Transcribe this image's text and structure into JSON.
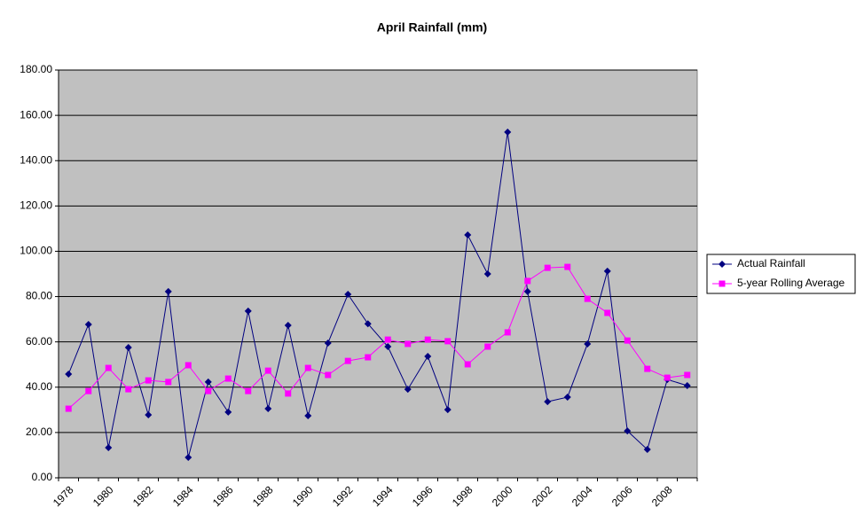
{
  "chart_data": {
    "type": "line",
    "title": "April Rainfall (mm)",
    "categories": [
      "1978",
      null,
      "1980",
      null,
      "1982",
      null,
      "1984",
      null,
      "1986",
      null,
      "1988",
      null,
      "1990",
      null,
      "1992",
      null,
      "1994",
      null,
      "1996",
      null,
      "1998",
      null,
      "2000",
      null,
      "2002",
      null,
      "2004",
      null,
      "2006",
      null,
      "2008",
      null
    ],
    "series": [
      {
        "name": "Actual Rainfall",
        "color": "#000080",
        "marker": "diamond",
        "values": [
          45.8,
          67.7,
          13.3,
          57.5,
          27.8,
          82.2,
          9.0,
          42.3,
          29.0,
          73.6,
          30.5,
          67.3,
          27.4,
          59.5,
          81.0,
          68.0,
          57.9,
          39.1,
          53.6,
          30.1,
          107.2,
          90.0,
          152.6,
          82.2,
          33.6,
          35.6,
          59.1,
          91.2,
          20.7,
          12.5,
          43.4,
          40.7
        ]
      },
      {
        "name": "5-year Rolling Average",
        "color": "#ff00ff",
        "marker": "square",
        "values": [
          30.5,
          38.3,
          48.5,
          39.1,
          43.0,
          42.3,
          49.7,
          38.3,
          43.8,
          38.3,
          47.3,
          37.2,
          48.5,
          45.4,
          51.6,
          53.2,
          61.0,
          59.1,
          61.0,
          60.3,
          50.1,
          57.9,
          64.2,
          86.9,
          92.7,
          93.1,
          79.0,
          72.8,
          60.6,
          48.1,
          44.2,
          45.4
        ]
      }
    ],
    "ylim": [
      0,
      180
    ],
    "yticks": [
      {
        "value": 0,
        "label": "0.00"
      },
      {
        "value": 20,
        "label": "20.00"
      },
      {
        "value": 40,
        "label": "40.00"
      },
      {
        "value": 60,
        "label": "60.00"
      },
      {
        "value": 80,
        "label": "80.00"
      },
      {
        "value": 100,
        "label": "100.00"
      },
      {
        "value": 120,
        "label": "120.00"
      },
      {
        "value": 140,
        "label": "140.00"
      },
      {
        "value": 160,
        "label": "160.00"
      },
      {
        "value": 180,
        "label": "180.00"
      }
    ],
    "grid": true,
    "legend": "right",
    "plot_background": "#c0c0c0"
  }
}
